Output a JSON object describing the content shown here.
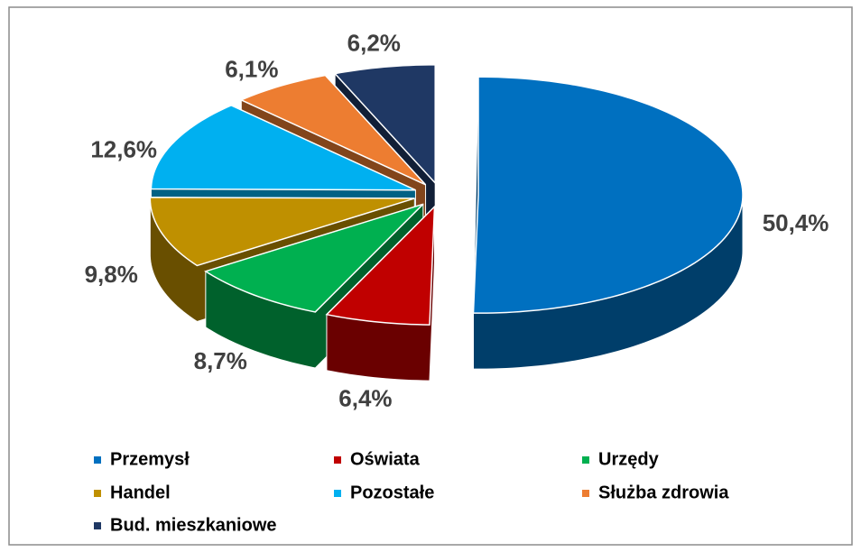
{
  "chart_data": {
    "type": "pie",
    "categories": [
      "Przemysł",
      "Oświata",
      "Urzędy",
      "Handel",
      "Pozostałe",
      "Służba zdrowia",
      "Bud. mieszkaniowe"
    ],
    "values": [
      50.4,
      6.4,
      8.7,
      9.8,
      12.6,
      6.1,
      6.2
    ],
    "value_labels": [
      "50,4%",
      "6,4%",
      "8,7%",
      "9,8%",
      "12,6%",
      "6,1%",
      "6,2%"
    ],
    "colors": [
      "#0070c0",
      "#c00000",
      "#00b050",
      "#bf9000",
      "#00b0f0",
      "#ed7d31",
      "#1f3864"
    ],
    "legend": "bottom"
  }
}
